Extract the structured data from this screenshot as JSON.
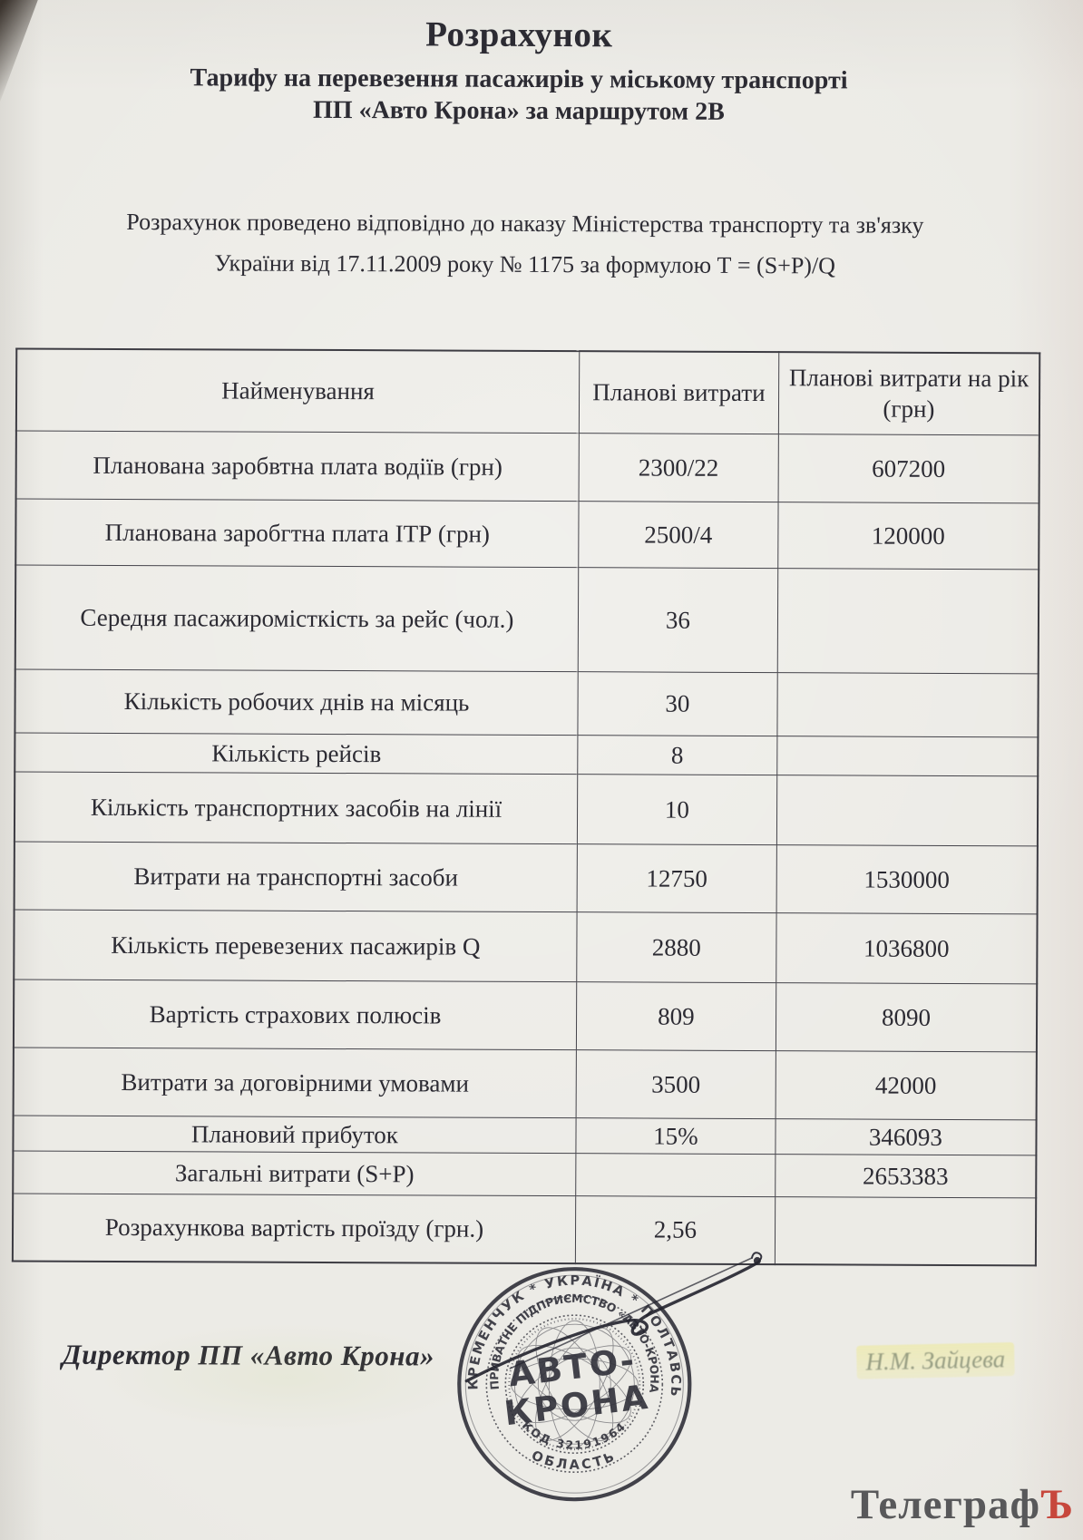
{
  "doc": {
    "title": "Розрахунок",
    "subtitle_line1": "Тарифу на перевезення пасажирів у міському транспорті",
    "subtitle_line2": "ПП «Авто Крона» за маршрутом 2В",
    "intro_line1": "Розрахунок проведено відповідно до наказу Міністерства транспорту та зв'язку",
    "intro_line2": "України від 17.11.2009 року № 1175 за формулою Т = (S+P)/Q"
  },
  "table": {
    "headers": [
      "Найменування",
      "Планові витрати",
      "Планові витрати на рік (грн)"
    ],
    "rows": [
      {
        "name": "Планована заробвтна плата водіїв (грн)",
        "planned": "2300/22",
        "yearly": "607200"
      },
      {
        "name": "Планована заробгтна плата ІТР (грн)",
        "planned": "2500/4",
        "yearly": "120000"
      },
      {
        "name": "Середня пасажиромісткість за рейс (чол.)",
        "planned": "36",
        "yearly": ""
      },
      {
        "name": "Кількість робочих днів на місяць",
        "planned": "30",
        "yearly": ""
      },
      {
        "name": "Кількість рейсів",
        "planned": "8",
        "yearly": ""
      },
      {
        "name": "Кількість транспортних засобів на лінії",
        "planned": "10",
        "yearly": ""
      },
      {
        "name": "Витрати на транспортні засоби",
        "planned": "12750",
        "yearly": "1530000"
      },
      {
        "name": "Кількість перевезених пасажирів Q",
        "planned": "2880",
        "yearly": "1036800"
      },
      {
        "name": "Вартість страхових полюсів",
        "planned": "809",
        "yearly": "8090"
      },
      {
        "name": "Витрати за договірними умовами",
        "planned": "3500",
        "yearly": "42000"
      },
      {
        "name": "Плановий прибуток",
        "planned": "15%",
        "yearly": "346093"
      },
      {
        "name": "Загальні витрати (S+P)",
        "planned": "",
        "yearly": "2653383"
      },
      {
        "name": "Розрахункова вартість проїзду (грн.)",
        "planned": "2,56",
        "yearly": ""
      }
    ]
  },
  "footer": {
    "director_label": "Директор ПП «Авто Крона»",
    "signature_name": "Н.М. Зайцева",
    "stamp": {
      "ring_outer_top": "КРЕМЕНЧУК * УКРАЇНА * ПОЛТАВСЬКА",
      "ring_outer_bottom": "ОБЛАСТЬ",
      "ring_inner_top": "ПРИВАТНЕ ПІДПРИЄМСТВО «АВТО-КРОНА»",
      "ring_inner_bottom": "КОД 32191964",
      "center_line1": "АВТО-",
      "center_line2": "КРОНА"
    }
  },
  "watermark": {
    "text_main": "Телеграф",
    "text_accent": "Ъ"
  },
  "colors": {
    "paper": "#eae9e4",
    "ink": "#2c2b33",
    "stamp_ink": "#30303a",
    "watermark_gray": "#58585a",
    "watermark_red": "#c7473c",
    "highlight": "#eeea96"
  }
}
